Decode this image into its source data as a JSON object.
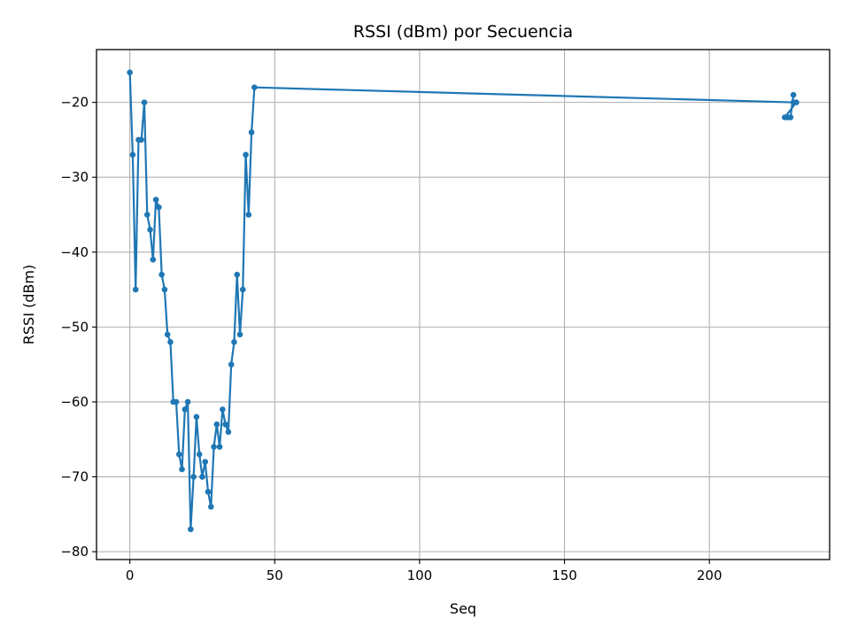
{
  "chart_data": {
    "type": "line",
    "title": "RSSI (dBm) por Secuencia",
    "xlabel": "Seq",
    "ylabel": "RSSI (dBm)",
    "xlim": [
      -11.5,
      241.5
    ],
    "ylim": [
      -81.05,
      -12.95
    ],
    "xticks": [
      0,
      50,
      100,
      150,
      200
    ],
    "yticks": [
      -80,
      -70,
      -60,
      -50,
      -40,
      -30,
      -20
    ],
    "grid": true,
    "color": "#1f77b4",
    "series": [
      {
        "x": [
          0,
          1,
          2,
          3,
          4,
          5,
          6,
          7,
          8,
          9,
          10,
          11,
          12,
          13,
          14,
          15,
          16,
          17,
          18,
          19,
          20,
          21,
          22,
          23,
          24,
          25,
          26,
          27,
          28,
          29,
          30,
          31,
          32,
          33,
          34,
          35,
          36,
          37,
          38,
          39,
          40,
          41,
          42,
          43,
          229,
          230,
          226,
          227,
          228,
          229
        ],
        "y": [
          -16,
          -27,
          -45,
          -25,
          -25,
          -20,
          -35,
          -37,
          -41,
          -33,
          -34,
          -43,
          -45,
          -51,
          -52,
          -60,
          -60,
          -67,
          -69,
          -61,
          -60,
          -77,
          -70,
          -62,
          -67,
          -70,
          -68,
          -72,
          -74,
          -66,
          -63,
          -66,
          -61,
          -63,
          -64,
          -55,
          -52,
          -43,
          -51,
          -45,
          -27,
          -35,
          -24,
          -18,
          -20,
          -20,
          -22,
          -22,
          -22,
          -19
        ]
      }
    ]
  }
}
